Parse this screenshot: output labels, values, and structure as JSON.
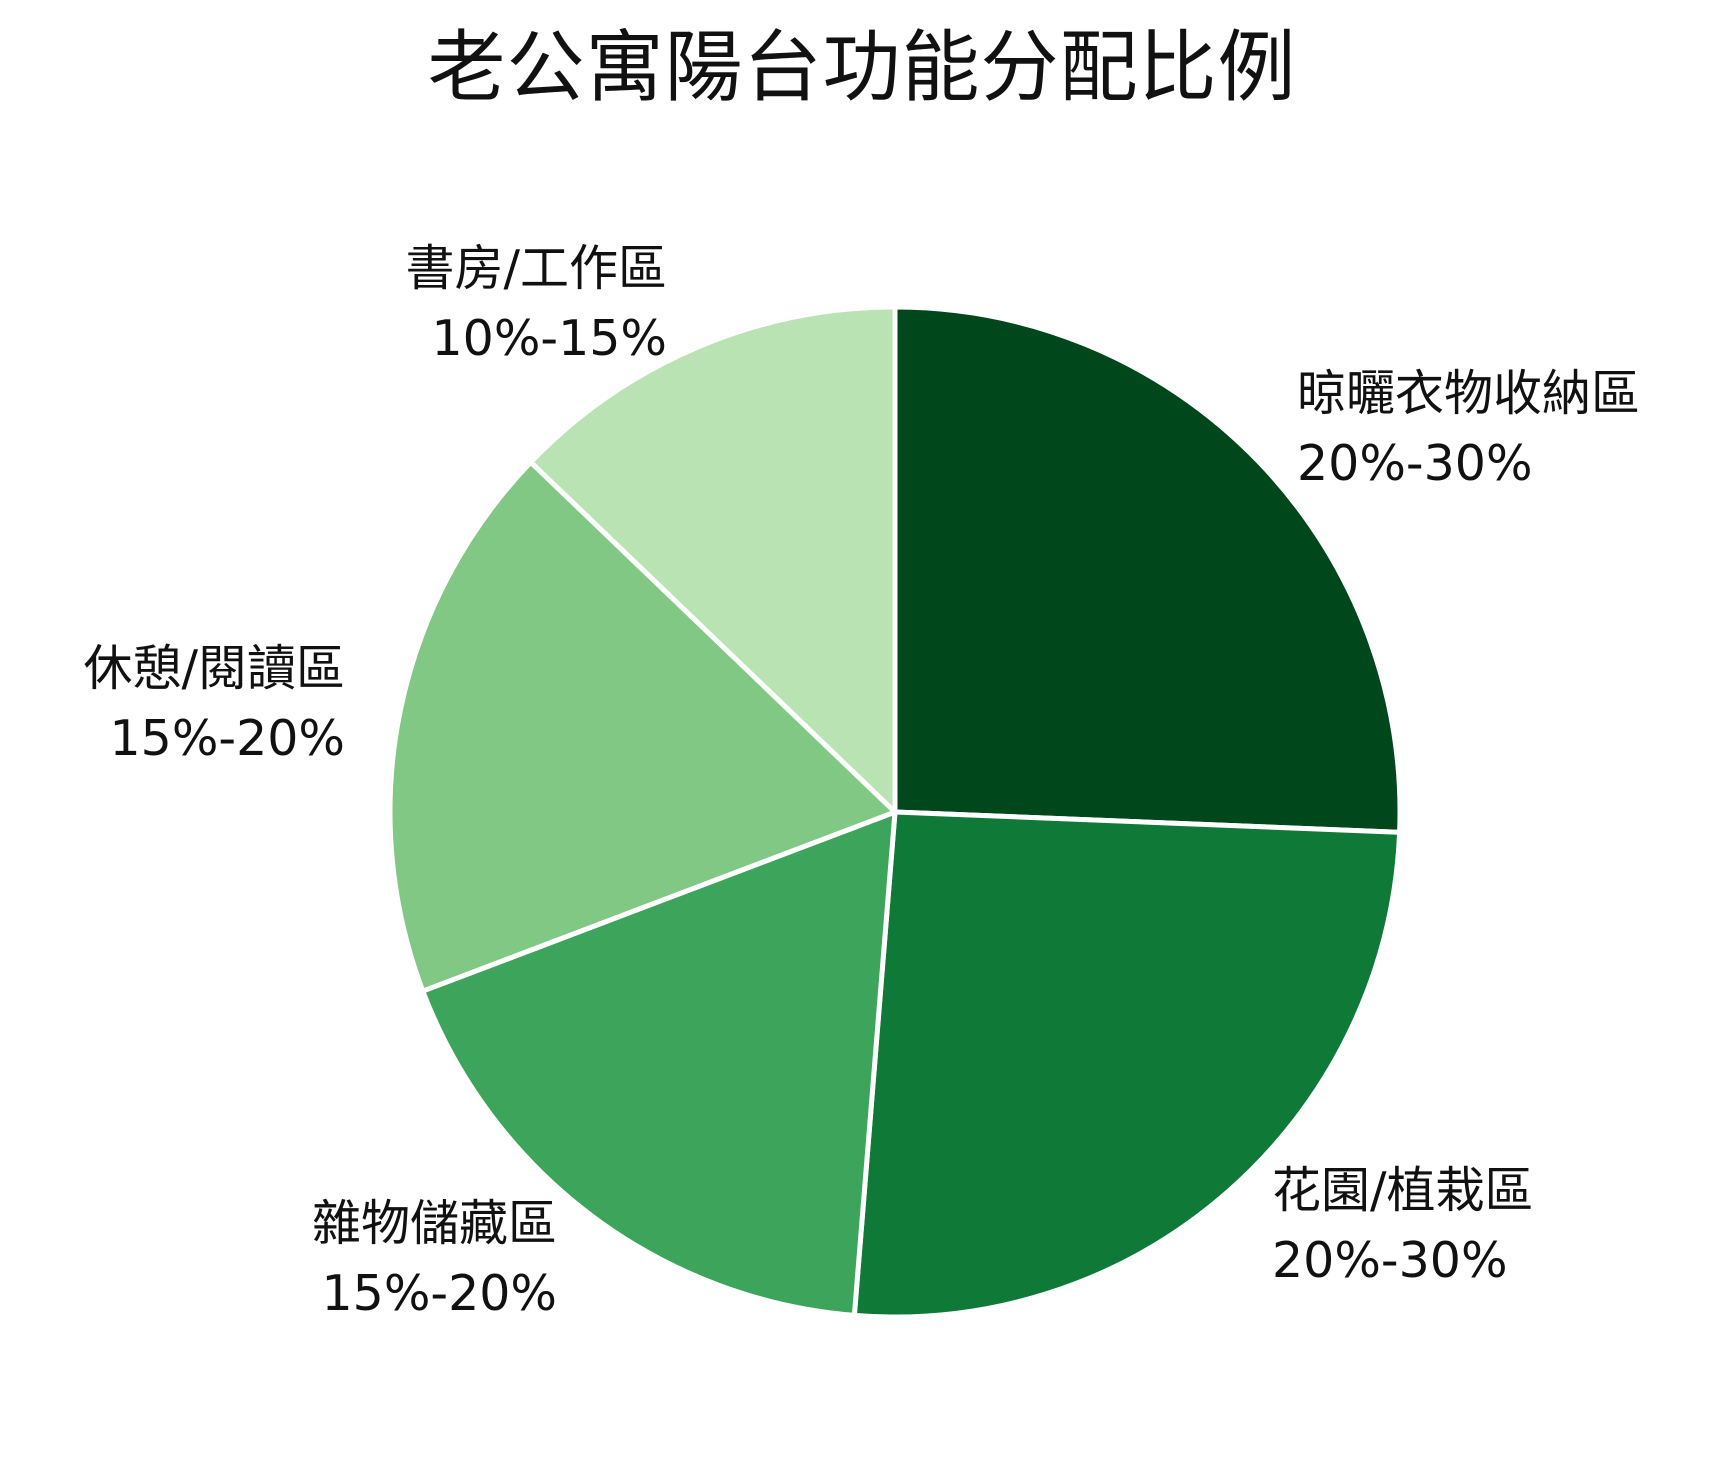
{
  "chart_data": {
    "type": "pie",
    "title": "老公寓陽台功能分配比例",
    "slices": [
      {
        "label": "晾曬衣物收納區",
        "range_text": "20%-30%",
        "value": 25,
        "color": "#00471b"
      },
      {
        "label": "花園/植栽區",
        "range_text": "20%-30%",
        "value": 25,
        "color": "#0f7a37"
      },
      {
        "label": "雜物儲藏區",
        "range_text": "15%-20%",
        "value": 17.5,
        "color": "#3da55b"
      },
      {
        "label": "休憩/閱讀區",
        "range_text": "15%-20%",
        "value": 17.5,
        "color": "#80c883"
      },
      {
        "label": "書房/工作區",
        "range_text": "10%-15%",
        "value": 12.5,
        "color": "#b9e3b3"
      }
    ]
  }
}
